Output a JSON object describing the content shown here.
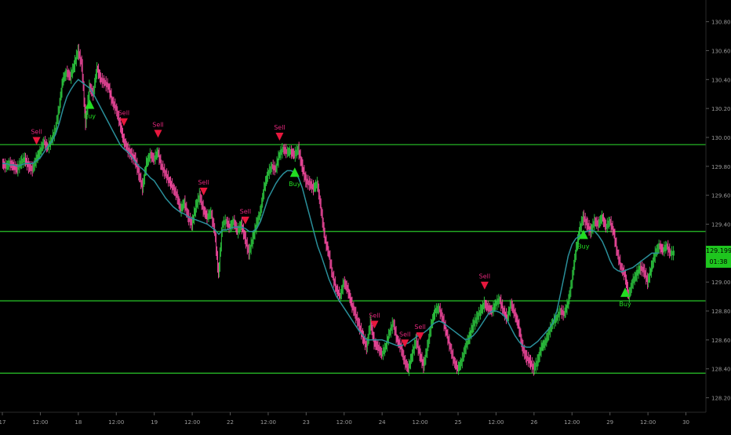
{
  "chart_data": {
    "type": "line",
    "title": "",
    "xlabel": "",
    "ylabel": "",
    "ylim": [
      128.1,
      130.95
    ],
    "colors": {
      "background": "#000000",
      "price": "#c8c8c8",
      "up_candle": "#2ecc40",
      "down_candle": "#ff4da6",
      "moving_average": "#2a8f9a",
      "horizontal_levels": "#29c729",
      "buy": "#22dd22",
      "sell": "#e8173d",
      "sell_label": "#e0267a",
      "price_tag": "#1ec51e"
    },
    "y_ticks": [
      "128.200",
      "128.400",
      "128.600",
      "128.800",
      "129.000",
      "129.200",
      "129.400",
      "129.600",
      "129.800",
      "130.000",
      "130.200",
      "130.400",
      "130.600",
      "130.800"
    ],
    "x_ticks": [
      {
        "i": 0,
        "label": "17"
      },
      {
        "i": 10,
        "label": "12:00"
      },
      {
        "i": 20,
        "label": "18"
      },
      {
        "i": 30,
        "label": "12:00"
      },
      {
        "i": 40,
        "label": "19"
      },
      {
        "i": 50,
        "label": "12:00"
      },
      {
        "i": 60,
        "label": "22"
      },
      {
        "i": 70,
        "label": "12:00"
      },
      {
        "i": 80,
        "label": "23"
      },
      {
        "i": 90,
        "label": "12:00"
      },
      {
        "i": 100,
        "label": "24"
      },
      {
        "i": 110,
        "label": "12:00"
      },
      {
        "i": 120,
        "label": "25"
      },
      {
        "i": 130,
        "label": "12:00"
      },
      {
        "i": 140,
        "label": "26"
      },
      {
        "i": 150,
        "label": "12:00"
      },
      {
        "i": 160,
        "label": "29"
      },
      {
        "i": 170,
        "label": "12:00"
      },
      {
        "i": 180,
        "label": "30"
      }
    ],
    "horizontal_levels": [
      129.95,
      129.35,
      128.87,
      128.37
    ],
    "current_price": "129.199",
    "countdown": "01:38",
    "price_series": [
      129.82,
      129.8,
      129.82,
      129.8,
      129.78,
      129.83,
      129.85,
      129.8,
      129.78,
      129.85,
      129.9,
      129.97,
      129.93,
      129.98,
      130.05,
      130.2,
      130.4,
      130.45,
      130.42,
      130.5,
      130.6,
      130.5,
      130.1,
      130.35,
      130.3,
      130.48,
      130.4,
      130.38,
      130.35,
      130.25,
      130.2,
      130.1,
      129.98,
      129.92,
      129.88,
      129.85,
      129.75,
      129.65,
      129.82,
      129.88,
      129.85,
      129.9,
      129.8,
      129.75,
      129.7,
      129.65,
      129.6,
      129.5,
      129.55,
      129.45,
      129.4,
      129.52,
      129.6,
      129.5,
      129.45,
      129.48,
      129.35,
      129.05,
      129.4,
      129.42,
      129.38,
      129.42,
      129.35,
      129.4,
      129.3,
      129.2,
      129.3,
      129.4,
      129.48,
      129.65,
      129.75,
      129.8,
      129.78,
      129.88,
      129.92,
      129.9,
      129.9,
      129.88,
      129.92,
      129.8,
      129.7,
      129.68,
      129.65,
      129.68,
      129.5,
      129.3,
      129.2,
      129.05,
      128.95,
      128.9,
      129.0,
      128.95,
      128.85,
      128.78,
      128.7,
      128.62,
      128.55,
      128.72,
      128.58,
      128.55,
      128.5,
      128.55,
      128.65,
      128.72,
      128.6,
      128.55,
      128.45,
      128.4,
      128.5,
      128.6,
      128.5,
      128.42,
      128.55,
      128.7,
      128.8,
      128.82,
      128.75,
      128.65,
      128.55,
      128.45,
      128.4,
      128.45,
      128.55,
      128.62,
      128.7,
      128.75,
      128.8,
      128.85,
      128.82,
      128.8,
      128.85,
      128.88,
      128.8,
      128.75,
      128.85,
      128.78,
      128.7,
      128.55,
      128.48,
      128.45,
      128.4,
      128.45,
      128.55,
      128.58,
      128.65,
      128.72,
      128.75,
      128.8,
      128.78,
      128.85,
      129.0,
      129.2,
      129.35,
      129.45,
      129.4,
      129.35,
      129.42,
      129.4,
      129.45,
      129.38,
      129.42,
      129.35,
      129.2,
      129.1,
      129.05,
      128.9,
      129.0,
      129.05,
      129.1,
      129.08,
      129.0,
      129.1,
      129.2,
      129.25,
      129.22,
      129.25,
      129.2,
      129.2
    ],
    "moving_average": [
      129.82,
      129.82,
      129.81,
      129.81,
      129.8,
      129.81,
      129.82,
      129.82,
      129.82,
      129.84,
      129.86,
      129.9,
      129.94,
      129.97,
      130.02,
      130.1,
      130.2,
      130.28,
      130.33,
      130.37,
      130.4,
      130.38,
      130.36,
      130.34,
      130.3,
      130.25,
      130.2,
      130.15,
      130.1,
      130.05,
      130.0,
      129.95,
      129.92,
      129.9,
      129.87,
      129.83,
      129.8,
      129.78,
      129.75,
      129.72,
      129.7,
      129.66,
      129.62,
      129.58,
      129.55,
      129.52,
      129.5,
      129.48,
      129.47,
      129.45,
      129.44,
      129.43,
      129.42,
      129.41,
      129.4,
      129.38,
      129.36,
      129.33,
      129.36,
      129.36,
      129.37,
      129.38,
      129.38,
      129.38,
      129.37,
      129.35,
      129.35,
      129.37,
      129.42,
      129.5,
      129.58,
      129.63,
      129.68,
      129.72,
      129.75,
      129.77,
      129.77,
      129.76,
      129.72,
      129.65,
      129.55,
      129.45,
      129.35,
      129.25,
      129.18,
      129.1,
      129.02,
      128.96,
      128.9,
      128.86,
      128.82,
      128.78,
      128.74,
      128.7,
      128.66,
      128.63,
      128.6,
      128.6,
      128.6,
      128.6,
      128.6,
      128.59,
      128.58,
      128.57,
      128.56,
      128.56,
      128.57,
      128.58,
      128.6,
      128.62,
      128.64,
      128.65,
      128.67,
      128.7,
      128.72,
      128.73,
      128.72,
      128.7,
      128.68,
      128.66,
      128.64,
      128.62,
      128.6,
      128.61,
      128.63,
      128.66,
      128.7,
      128.74,
      128.78,
      128.8,
      128.8,
      128.79,
      128.77,
      128.73,
      128.68,
      128.63,
      128.59,
      128.56,
      128.55,
      128.55,
      128.57,
      128.59,
      128.62,
      128.65,
      128.68,
      128.72,
      128.8,
      128.92,
      129.05,
      129.18,
      129.26,
      129.3,
      129.32,
      129.34,
      129.35,
      129.36,
      129.35,
      129.32,
      129.28,
      129.22,
      129.15,
      129.1,
      129.08,
      129.07,
      129.08,
      129.09,
      129.1,
      129.12,
      129.14,
      129.16,
      129.18,
      129.2,
      129.2,
      129.2
    ],
    "signals": [
      {
        "i": 9,
        "type": "sell",
        "label": "Sell"
      },
      {
        "i": 23,
        "type": "buy",
        "label": "Buy"
      },
      {
        "i": 32,
        "type": "sell",
        "label": "Sell"
      },
      {
        "i": 41,
        "type": "sell",
        "label": "Sell"
      },
      {
        "i": 53,
        "type": "sell",
        "label": "Sell"
      },
      {
        "i": 64,
        "type": "sell",
        "label": "Sell"
      },
      {
        "i": 73,
        "type": "sell",
        "label": "Sell"
      },
      {
        "i": 77,
        "type": "buy",
        "label": "Buy"
      },
      {
        "i": 98,
        "type": "sell",
        "label": "Sell"
      },
      {
        "i": 106,
        "type": "sell",
        "label": "Sell"
      },
      {
        "i": 110,
        "type": "sell",
        "label": "Sell"
      },
      {
        "i": 127,
        "type": "sell",
        "label": "Sell"
      },
      {
        "i": 153,
        "type": "buy",
        "label": "Buy"
      },
      {
        "i": 164,
        "type": "buy",
        "label": "Buy"
      }
    ]
  }
}
